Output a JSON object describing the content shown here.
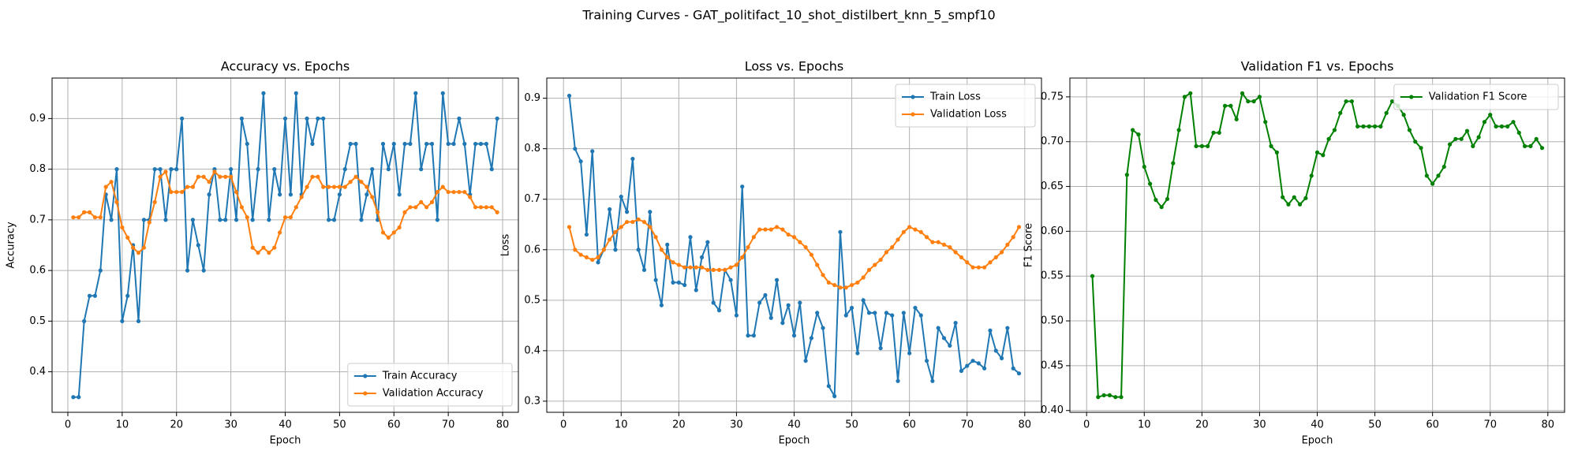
{
  "title": "Training Curves - GAT_politifact_10_shot_distilbert_knn_5_smpf10",
  "chart_data": [
    {
      "type": "line",
      "title": "Accuracy vs. Epochs",
      "xlabel": "Epoch",
      "ylabel": "Accuracy",
      "x": [
        1,
        2,
        3,
        4,
        5,
        6,
        7,
        8,
        9,
        10,
        11,
        12,
        13,
        14,
        15,
        16,
        17,
        18,
        19,
        20,
        21,
        22,
        23,
        24,
        25,
        26,
        27,
        28,
        29,
        30,
        31,
        32,
        33,
        34,
        35,
        36,
        37,
        38,
        39,
        40,
        41,
        42,
        43,
        44,
        45,
        46,
        47,
        48,
        49,
        50,
        51,
        52,
        53,
        54,
        55,
        56,
        57,
        58,
        59,
        60,
        61,
        62,
        63,
        64,
        65,
        66,
        67,
        68,
        69,
        70,
        71,
        72,
        73,
        74,
        75,
        76,
        77,
        78,
        79
      ],
      "series": [
        {
          "name": "Train Accuracy",
          "color": "#1f77b4",
          "values": [
            0.35,
            0.35,
            0.5,
            0.55,
            0.55,
            0.6,
            0.75,
            0.7,
            0.8,
            0.5,
            0.55,
            0.65,
            0.5,
            0.7,
            0.7,
            0.8,
            0.8,
            0.7,
            0.8,
            0.8,
            0.9,
            0.6,
            0.7,
            0.65,
            0.6,
            0.75,
            0.8,
            0.7,
            0.7,
            0.8,
            0.7,
            0.9,
            0.85,
            0.7,
            0.8,
            0.95,
            0.7,
            0.8,
            0.75,
            0.9,
            0.75,
            0.95,
            0.75,
            0.9,
            0.85,
            0.9,
            0.9,
            0.7,
            0.7,
            0.75,
            0.8,
            0.85,
            0.85,
            0.7,
            0.75,
            0.8,
            0.7,
            0.85,
            0.8,
            0.85,
            0.75,
            0.85,
            0.85,
            0.95,
            0.8,
            0.85,
            0.85,
            0.7,
            0.95,
            0.85,
            0.85,
            0.9,
            0.85,
            0.75,
            0.85,
            0.85,
            0.85,
            0.8,
            0.9
          ]
        },
        {
          "name": "Validation Accuracy",
          "color": "#ff7f0e",
          "values": [
            0.705,
            0.705,
            0.715,
            0.715,
            0.705,
            0.705,
            0.765,
            0.775,
            0.735,
            0.685,
            0.665,
            0.645,
            0.635,
            0.645,
            0.695,
            0.735,
            0.785,
            0.795,
            0.755,
            0.755,
            0.755,
            0.765,
            0.765,
            0.785,
            0.785,
            0.775,
            0.795,
            0.785,
            0.785,
            0.785,
            0.755,
            0.725,
            0.705,
            0.645,
            0.635,
            0.645,
            0.635,
            0.645,
            0.675,
            0.705,
            0.705,
            0.725,
            0.745,
            0.765,
            0.785,
            0.785,
            0.765,
            0.765,
            0.765,
            0.765,
            0.765,
            0.775,
            0.785,
            0.775,
            0.765,
            0.745,
            0.715,
            0.675,
            0.665,
            0.675,
            0.685,
            0.715,
            0.725,
            0.725,
            0.735,
            0.725,
            0.735,
            0.755,
            0.765,
            0.755,
            0.755,
            0.755,
            0.755,
            0.745,
            0.725,
            0.725,
            0.725,
            0.725,
            0.715
          ]
        }
      ],
      "xlim": [
        -2.9,
        82.9
      ],
      "xticks": [
        0,
        10,
        20,
        30,
        40,
        50,
        60,
        70,
        80
      ],
      "ylim": [
        0.32,
        0.98
      ],
      "yticks": [
        0.4,
        0.5,
        0.6,
        0.7,
        0.8,
        0.9
      ],
      "grid": true,
      "legend": "lower right"
    },
    {
      "type": "line",
      "title": "Loss vs. Epochs",
      "xlabel": "Epoch",
      "ylabel": "Loss",
      "x": [
        1,
        2,
        3,
        4,
        5,
        6,
        7,
        8,
        9,
        10,
        11,
        12,
        13,
        14,
        15,
        16,
        17,
        18,
        19,
        20,
        21,
        22,
        23,
        24,
        25,
        26,
        27,
        28,
        29,
        30,
        31,
        32,
        33,
        34,
        35,
        36,
        37,
        38,
        39,
        40,
        41,
        42,
        43,
        44,
        45,
        46,
        47,
        48,
        49,
        50,
        51,
        52,
        53,
        54,
        55,
        56,
        57,
        58,
        59,
        60,
        61,
        62,
        63,
        64,
        65,
        66,
        67,
        68,
        69,
        70,
        71,
        72,
        73,
        74,
        75,
        76,
        77,
        78,
        79
      ],
      "series": [
        {
          "name": "Train Loss",
          "color": "#1f77b4",
          "values": [
            0.905,
            0.8,
            0.775,
            0.63,
            0.795,
            0.575,
            0.6,
            0.68,
            0.6,
            0.705,
            0.675,
            0.78,
            0.6,
            0.56,
            0.675,
            0.54,
            0.49,
            0.61,
            0.535,
            0.535,
            0.53,
            0.625,
            0.52,
            0.585,
            0.615,
            0.495,
            0.48,
            0.56,
            0.54,
            0.47,
            0.725,
            0.43,
            0.43,
            0.495,
            0.51,
            0.465,
            0.54,
            0.455,
            0.49,
            0.43,
            0.495,
            0.38,
            0.425,
            0.475,
            0.445,
            0.33,
            0.31,
            0.635,
            0.47,
            0.485,
            0.395,
            0.5,
            0.475,
            0.475,
            0.405,
            0.475,
            0.47,
            0.34,
            0.475,
            0.395,
            0.485,
            0.47,
            0.38,
            0.34,
            0.445,
            0.425,
            0.41,
            0.455,
            0.36,
            0.37,
            0.38,
            0.375,
            0.365,
            0.44,
            0.4,
            0.385,
            0.445,
            0.365,
            0.355
          ]
        },
        {
          "name": "Validation Loss",
          "color": "#ff7f0e",
          "values": [
            0.645,
            0.6,
            0.59,
            0.585,
            0.58,
            0.585,
            0.6,
            0.62,
            0.635,
            0.645,
            0.655,
            0.655,
            0.66,
            0.655,
            0.645,
            0.625,
            0.6,
            0.585,
            0.575,
            0.57,
            0.565,
            0.565,
            0.565,
            0.565,
            0.56,
            0.56,
            0.56,
            0.56,
            0.565,
            0.57,
            0.585,
            0.605,
            0.625,
            0.64,
            0.64,
            0.64,
            0.645,
            0.64,
            0.63,
            0.625,
            0.615,
            0.605,
            0.59,
            0.57,
            0.55,
            0.535,
            0.53,
            0.525,
            0.525,
            0.53,
            0.535,
            0.545,
            0.56,
            0.57,
            0.58,
            0.595,
            0.605,
            0.62,
            0.635,
            0.645,
            0.64,
            0.635,
            0.625,
            0.615,
            0.615,
            0.61,
            0.605,
            0.595,
            0.585,
            0.575,
            0.565,
            0.565,
            0.565,
            0.575,
            0.585,
            0.595,
            0.61,
            0.625,
            0.645
          ]
        }
      ],
      "xlim": [
        -2.9,
        82.9
      ],
      "xticks": [
        0,
        10,
        20,
        30,
        40,
        50,
        60,
        70,
        80
      ],
      "ylim": [
        0.278,
        0.94
      ],
      "yticks": [
        0.3,
        0.4,
        0.5,
        0.6,
        0.7,
        0.8,
        0.9
      ],
      "grid": true,
      "legend": "upper right"
    },
    {
      "type": "line",
      "title": "Validation F1 vs. Epochs",
      "xlabel": "Epoch",
      "ylabel": "F1 Score",
      "x": [
        1,
        2,
        3,
        4,
        5,
        6,
        7,
        8,
        9,
        10,
        11,
        12,
        13,
        14,
        15,
        16,
        17,
        18,
        19,
        20,
        21,
        22,
        23,
        24,
        25,
        26,
        27,
        28,
        29,
        30,
        31,
        32,
        33,
        34,
        35,
        36,
        37,
        38,
        39,
        40,
        41,
        42,
        43,
        44,
        45,
        46,
        47,
        48,
        49,
        50,
        51,
        52,
        53,
        54,
        55,
        56,
        57,
        58,
        59,
        60,
        61,
        62,
        63,
        64,
        65,
        66,
        67,
        68,
        69,
        70,
        71,
        72,
        73,
        74,
        75,
        76,
        77,
        78,
        79
      ],
      "series": [
        {
          "name": "Validation F1 Score",
          "color": "#008000",
          "values": [
            0.55,
            0.415,
            0.417,
            0.417,
            0.415,
            0.415,
            0.663,
            0.713,
            0.708,
            0.672,
            0.653,
            0.635,
            0.627,
            0.636,
            0.676,
            0.713,
            0.75,
            0.754,
            0.695,
            0.695,
            0.695,
            0.71,
            0.71,
            0.74,
            0.74,
            0.725,
            0.754,
            0.745,
            0.745,
            0.75,
            0.722,
            0.695,
            0.688,
            0.638,
            0.63,
            0.638,
            0.63,
            0.637,
            0.662,
            0.688,
            0.685,
            0.703,
            0.713,
            0.732,
            0.745,
            0.745,
            0.717,
            0.717,
            0.717,
            0.717,
            0.717,
            0.732,
            0.745,
            0.74,
            0.73,
            0.713,
            0.7,
            0.693,
            0.662,
            0.653,
            0.662,
            0.672,
            0.697,
            0.703,
            0.703,
            0.712,
            0.695,
            0.705,
            0.722,
            0.73,
            0.717,
            0.717,
            0.717,
            0.722,
            0.71,
            0.695,
            0.695,
            0.703,
            0.693
          ]
        }
      ],
      "xlim": [
        -2.9,
        82.9
      ],
      "xticks": [
        0,
        10,
        20,
        30,
        40,
        50,
        60,
        70,
        80
      ],
      "ylim": [
        0.398,
        0.771
      ],
      "yticks": [
        {
          "value": 0.4,
          "label": "0.40"
        },
        0.45,
        {
          "value": 0.5,
          "label": "0.50"
        },
        0.55,
        {
          "value": 0.6,
          "label": "0.60"
        },
        0.65,
        {
          "value": 0.7,
          "label": "0.70"
        },
        0.75
      ],
      "grid": true,
      "legend": "upper right"
    }
  ]
}
